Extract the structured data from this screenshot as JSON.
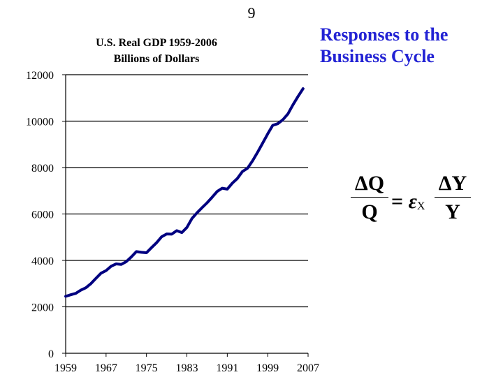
{
  "slide": {
    "number": "9",
    "title_line1": "Responses to the",
    "title_line2": "Business Cycle",
    "title_color": "#2323d4"
  },
  "formula": {
    "left_numerator": "ΔQ",
    "left_denominator": "Q",
    "equals": "=",
    "elasticity_symbol": "ε",
    "elasticity_subscript": "X",
    "right_numerator": "ΔY",
    "right_denominator": "Y"
  },
  "chart_data": {
    "type": "line",
    "title": "U.S. Real GDP 1959-2006",
    "subtitle": "Billions of Dollars",
    "xlabel": "",
    "ylabel": "",
    "xlim": [
      1959,
      2007
    ],
    "ylim": [
      0,
      12000
    ],
    "xticks": [
      "1959",
      "1967",
      "1975",
      "1983",
      "1991",
      "1999",
      "2007"
    ],
    "yticks": [
      "0",
      "2000",
      "4000",
      "6000",
      "8000",
      "10000",
      "12000"
    ],
    "grid": "horizontal",
    "line_color": "#000080",
    "series": [
      {
        "x": [
          1959,
          1960,
          1961,
          1962,
          1963,
          1964,
          1965,
          1966,
          1967,
          1968,
          1969,
          1970,
          1971,
          1972,
          1973,
          1974,
          1975,
          1976,
          1977,
          1978,
          1979,
          1980,
          1981,
          1982,
          1983,
          1984,
          1985,
          1986,
          1987,
          1988,
          1989,
          1990,
          1991,
          1992,
          1993,
          1994,
          1995,
          1996,
          1997,
          1998,
          1999,
          2000,
          2001,
          2002,
          2003,
          2004,
          2005,
          2006
        ],
        "values": [
          2450,
          2520,
          2580,
          2720,
          2820,
          3000,
          3230,
          3450,
          3560,
          3750,
          3850,
          3830,
          3950,
          4150,
          4380,
          4350,
          4330,
          4550,
          4760,
          5020,
          5140,
          5130,
          5280,
          5200,
          5420,
          5800,
          6050,
          6270,
          6480,
          6720,
          6970,
          7110,
          7070,
          7330,
          7530,
          7830,
          7970,
          8290,
          8660,
          9050,
          9450,
          9820,
          9890,
          10060,
          10310,
          10700,
          11060,
          11400
        ]
      }
    ]
  }
}
